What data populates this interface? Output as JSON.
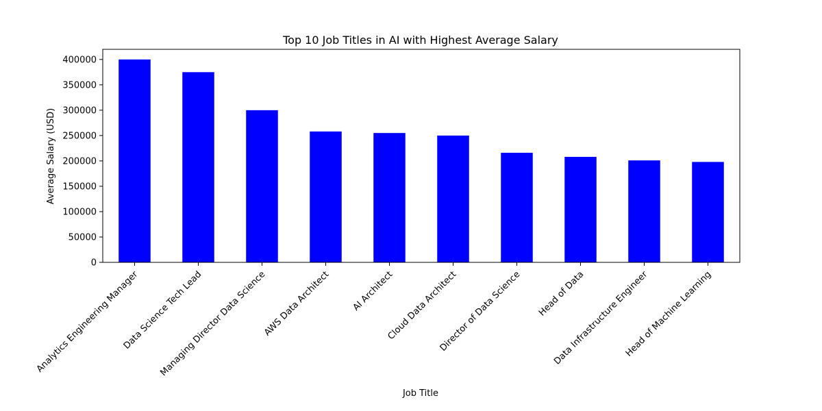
{
  "chart_data": {
    "type": "bar",
    "title": "Top 10 Job Titles in AI with Highest Average Salary",
    "xlabel": "Job Title",
    "ylabel": "Average Salary (USD)",
    "categories": [
      "Analytics Engineering Manager",
      "Data Science Tech Lead",
      "Managing Director Data Science",
      "AWS Data Architect",
      "AI Architect",
      "Cloud Data Architect",
      "Director of Data Science",
      "Head of Data",
      "Data Infrastructure Engineer",
      "Head of Machine Learning"
    ],
    "values": [
      400000,
      375000,
      300000,
      258000,
      255000,
      250000,
      216000,
      208000,
      201000,
      198000
    ],
    "ylim": [
      0,
      420000
    ],
    "yticks": [
      0,
      50000,
      100000,
      150000,
      200000,
      250000,
      300000,
      350000,
      400000
    ],
    "bar_color": "#0000ff",
    "grid": false,
    "legend": false
  }
}
